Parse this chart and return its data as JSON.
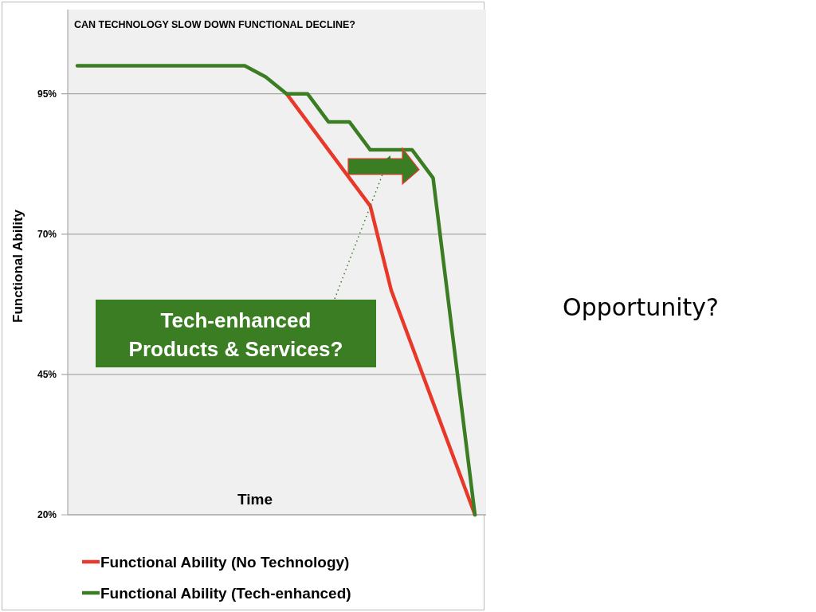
{
  "chart_data": {
    "type": "line",
    "title": "CAN TECHNOLOGY SLOW DOWN FUNCTIONAL DECLINE?",
    "xlabel": "Time",
    "ylabel": "Functional Ability",
    "categories": [
      null,
      null,
      null,
      null,
      null,
      null,
      null,
      null,
      null,
      null,
      null,
      null,
      null,
      null,
      null,
      null,
      null,
      null,
      null,
      null
    ],
    "series": [
      {
        "name": "Functional Ability (No Technology)",
        "color": "#e8382a",
        "values": [
          null,
          null,
          null,
          null,
          null,
          null,
          null,
          null,
          null,
          null,
          95,
          90,
          85,
          80,
          75,
          60,
          50,
          40,
          30,
          20
        ]
      },
      {
        "name": "Functional Ability (Tech-enhanced)",
        "color": "#3a7d22",
        "values": [
          100,
          100,
          100,
          100,
          100,
          100,
          100,
          100,
          100,
          98,
          95,
          95,
          90,
          90,
          85,
          85,
          85,
          80,
          50,
          20
        ]
      }
    ],
    "ylim": [
      20,
      110
    ],
    "yticks": [
      {
        "value": 20,
        "label": "20%"
      },
      {
        "value": 45,
        "label": "45%"
      },
      {
        "value": 70,
        "label": "70%"
      },
      {
        "value": 95,
        "label": "95%"
      }
    ],
    "grid": "y",
    "legend": "bottom",
    "marker": "none",
    "line_style": "solid",
    "annotations": [
      "Tech-enhanced Products & Services?",
      "Opportunity?"
    ]
  }
}
